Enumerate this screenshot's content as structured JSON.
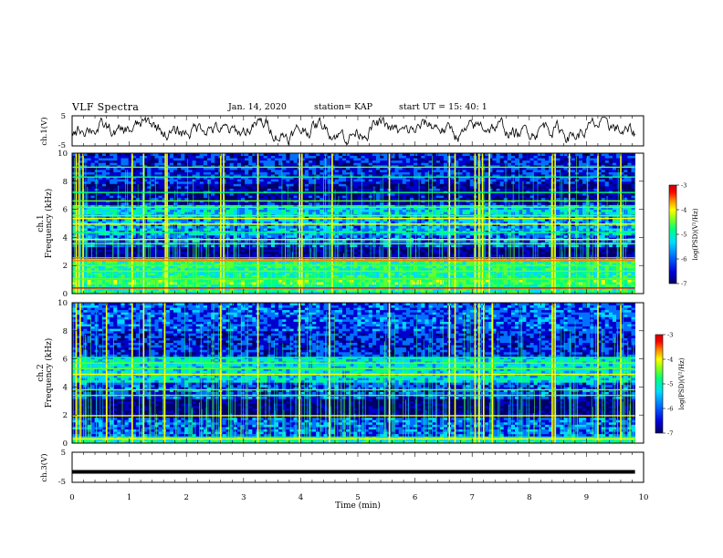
{
  "header": {
    "title": "VLF Spectra",
    "date": "Jan. 14, 2020",
    "station": "station= KAP",
    "start": "start  UT =   15: 40: 1"
  },
  "chart_data": [
    {
      "type": "line",
      "id": "ch1-waveform",
      "ylabel": "ch.1(V)",
      "ylim": [
        -5,
        5
      ],
      "yticks": [
        "5",
        "-5"
      ],
      "xlim": [
        0,
        10
      ],
      "series": [
        {
          "values_summary": "noisy waveform oscillating roughly between -2 and +3 V over 0-9.85 min"
        }
      ]
    },
    {
      "type": "heatmap",
      "id": "ch1-spectrogram",
      "ylabel": "ch.1",
      "ylabel2": "Frequency (kHz)",
      "ylim": [
        0,
        10
      ],
      "yticks": [
        "0",
        "2",
        "4",
        "6",
        "8",
        "10"
      ],
      "xlim": [
        0,
        10
      ],
      "colorbar": {
        "label": "log(PSD)(V²/Hz)",
        "range": [
          -7,
          -3
        ],
        "ticks": [
          "-3",
          "-4",
          "-5",
          "-6",
          "-7"
        ]
      },
      "bands_khz": [
        {
          "from": 0.0,
          "to": 0.6,
          "level": -5.2
        },
        {
          "from": 0.6,
          "to": 1.0,
          "level": -4.9
        },
        {
          "from": 1.0,
          "to": 1.8,
          "level": -5.3
        },
        {
          "from": 1.8,
          "to": 2.5,
          "level": -5.1
        },
        {
          "from": 2.5,
          "to": 3.4,
          "level": -6.7
        },
        {
          "from": 3.4,
          "to": 4.1,
          "level": -6.1
        },
        {
          "from": 4.1,
          "to": 5.5,
          "level": -5.8
        },
        {
          "from": 5.5,
          "to": 6.3,
          "level": -5.6
        },
        {
          "from": 6.3,
          "to": 7.8,
          "level": -6.6
        },
        {
          "from": 7.8,
          "to": 10.0,
          "level": -6.3
        }
      ],
      "lines_khz": [
        {
          "f": 0.4,
          "level": -3.6
        },
        {
          "f": 1.05,
          "level": -5.0
        },
        {
          "f": 1.6,
          "level": -5.0
        },
        {
          "f": 2.0,
          "level": -4.7
        },
        {
          "f": 2.35,
          "level": -4.0
        },
        {
          "f": 2.55,
          "level": -4.2
        },
        {
          "f": 3.55,
          "level": -4.8
        },
        {
          "f": 3.85,
          "level": -4.6
        },
        {
          "f": 4.35,
          "level": -5.1
        },
        {
          "f": 4.95,
          "level": -4.6
        },
        {
          "f": 5.35,
          "level": -4.3
        },
        {
          "f": 5.55,
          "level": -5.0
        },
        {
          "f": 6.15,
          "level": -4.8
        },
        {
          "f": 6.6,
          "level": -5.0
        },
        {
          "f": 7.2,
          "level": -5.2
        },
        {
          "f": 8.3,
          "level": -5.1
        },
        {
          "f": 9.0,
          "level": -4.8
        }
      ],
      "bursts_min": [
        0.07,
        0.12,
        0.19,
        1.05,
        1.25,
        1.63,
        1.66,
        2.6,
        2.65,
        3.25,
        3.98,
        4.02,
        4.55,
        5.55,
        6.6,
        6.7,
        7.05,
        7.12,
        7.18,
        7.3,
        8.4,
        8.45,
        8.7,
        9.2,
        9.6
      ]
    },
    {
      "type": "heatmap",
      "id": "ch2-spectrogram",
      "ylabel": "ch.2",
      "ylabel2": "Frequency (kHz)",
      "ylim": [
        0,
        10
      ],
      "yticks": [
        "0",
        "2",
        "4",
        "6",
        "8",
        "10"
      ],
      "xlim": [
        0,
        10
      ],
      "colorbar": {
        "label": "log(PSD)(V²/Hz)",
        "range": [
          -7,
          -3
        ],
        "ticks": [
          "-3",
          "-4",
          "-5",
          "-6",
          "-7"
        ]
      },
      "bands_khz": [
        {
          "from": 0.0,
          "to": 0.5,
          "level": -5.3
        },
        {
          "from": 0.5,
          "to": 1.9,
          "level": -6.1
        },
        {
          "from": 1.9,
          "to": 3.2,
          "level": -6.8
        },
        {
          "from": 3.2,
          "to": 4.3,
          "level": -6.2
        },
        {
          "from": 4.3,
          "to": 6.2,
          "level": -5.5
        },
        {
          "from": 6.2,
          "to": 8.0,
          "level": -6.3
        },
        {
          "from": 8.0,
          "to": 10.0,
          "level": -6.1
        }
      ],
      "lines_khz": [
        {
          "f": 0.3,
          "level": -4.5
        },
        {
          "f": 1.95,
          "level": -4.6
        },
        {
          "f": 3.4,
          "level": -4.7
        },
        {
          "f": 3.8,
          "level": -5.0
        },
        {
          "f": 4.9,
          "level": -4.6
        },
        {
          "f": 5.3,
          "level": -4.9
        },
        {
          "f": 5.7,
          "level": -5.0
        },
        {
          "f": 6.1,
          "level": -5.2
        }
      ],
      "bursts_min": [
        0.07,
        0.14,
        0.6,
        1.05,
        1.25,
        1.62,
        2.6,
        3.25,
        3.98,
        4.5,
        5.55,
        6.6,
        6.7,
        7.05,
        7.12,
        7.2,
        7.35,
        8.4,
        8.45,
        9.2,
        9.6
      ]
    },
    {
      "type": "line",
      "id": "ch3-waveform",
      "ylabel": "ch.3(V)",
      "ylim": [
        -5,
        5
      ],
      "yticks": [
        "5",
        "-5"
      ],
      "xlim": [
        0,
        10
      ],
      "series": [
        {
          "values_summary": "flat thick line at about -1.5 V"
        }
      ],
      "level_v": -1.5,
      "xlabel": "Time (min)",
      "xticks": [
        "0",
        "1",
        "2",
        "3",
        "4",
        "5",
        "6",
        "7",
        "8",
        "9",
        "10"
      ]
    }
  ],
  "colors": {
    "colormap": [
      "#000066",
      "#0000cc",
      "#0070ff",
      "#00d8ff",
      "#00ff80",
      "#60ff30",
      "#ffff00",
      "#ff8000",
      "#ff0000",
      "#cc0000"
    ]
  }
}
